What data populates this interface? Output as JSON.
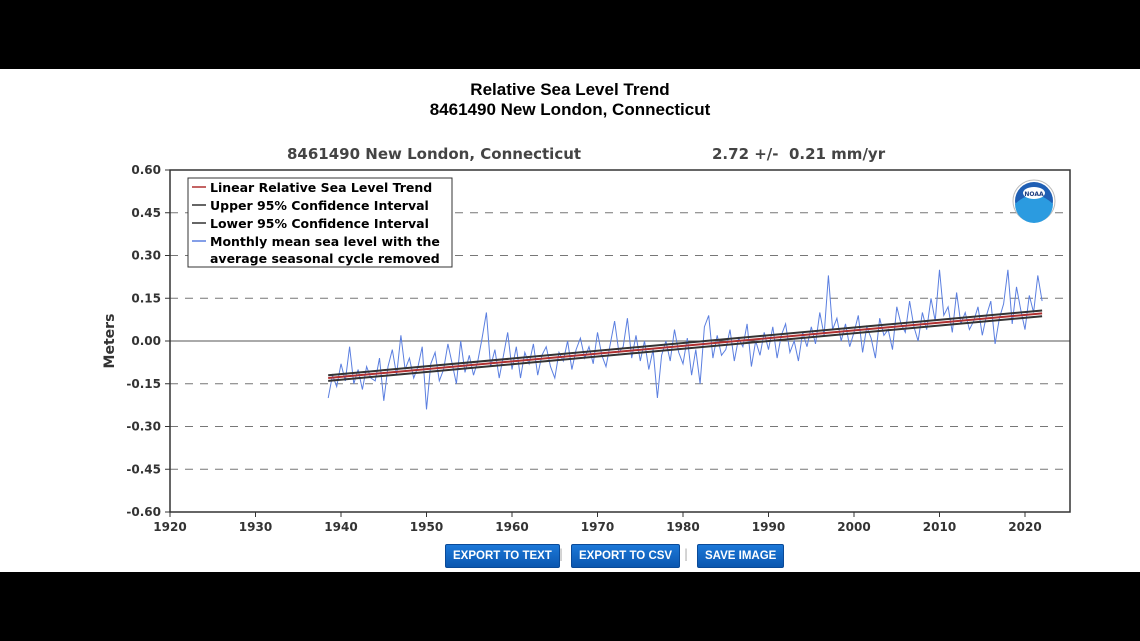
{
  "chart_data": {
    "type": "line",
    "title": "Relative Sea Level Trend",
    "subtitle": "8461490 New London, Connecticut",
    "station_label": "8461490 New London, Connecticut",
    "rate_label": "2.72 +/-  0.21 mm/yr",
    "ylabel": "Meters",
    "xlim": [
      1920,
      2025
    ],
    "ylim": [
      -0.6,
      0.6
    ],
    "xticks": [
      "1920",
      "1930",
      "1940",
      "1950",
      "1960",
      "1970",
      "1980",
      "1990",
      "2000",
      "2010",
      "2020"
    ],
    "yticks": [
      "0.60",
      "0.45",
      "0.30",
      "0.15",
      "0.00",
      "-0.15",
      "-0.30",
      "-0.45",
      "-0.60"
    ],
    "legend": [
      "Linear Relative Sea Level Trend",
      "Upper 95% Confidence Interval",
      "Lower 95% Confidence Interval",
      "Monthly mean sea level with the",
      "average seasonal cycle removed"
    ],
    "legend_position": "top-left",
    "trend": {
      "x": [
        1938.5,
        2022
      ],
      "y": [
        -0.13,
        0.097
      ]
    },
    "upper_ci": {
      "x": [
        1938.5,
        2022
      ],
      "y": [
        -0.12,
        0.107
      ]
    },
    "lower_ci": {
      "x": [
        1938.5,
        2022
      ],
      "y": [
        -0.14,
        0.087
      ]
    },
    "monthly": {
      "start": 1938.5,
      "step": 0.5,
      "values": [
        -0.2,
        -0.12,
        -0.16,
        -0.08,
        -0.14,
        -0.02,
        -0.15,
        -0.1,
        -0.17,
        -0.09,
        -0.13,
        -0.14,
        -0.06,
        -0.21,
        -0.09,
        -0.03,
        -0.12,
        0.02,
        -0.1,
        -0.06,
        -0.13,
        -0.09,
        -0.02,
        -0.24,
        -0.08,
        -0.04,
        -0.14,
        -0.1,
        -0.01,
        -0.08,
        -0.15,
        0.0,
        -0.11,
        -0.05,
        -0.12,
        -0.07,
        0.01,
        0.1,
        -0.09,
        -0.03,
        -0.13,
        -0.05,
        0.03,
        -0.1,
        -0.02,
        -0.13,
        -0.04,
        -0.08,
        -0.01,
        -0.12,
        -0.05,
        -0.02,
        -0.09,
        -0.13,
        -0.04,
        -0.07,
        0.0,
        -0.1,
        -0.03,
        0.01,
        -0.06,
        -0.02,
        -0.08,
        0.03,
        -0.05,
        -0.09,
        -0.01,
        0.07,
        -0.04,
        -0.02,
        0.08,
        -0.06,
        0.02,
        -0.07,
        0.0,
        -0.1,
        -0.03,
        -0.2,
        -0.05,
        0.0,
        -0.07,
        0.04,
        -0.04,
        -0.08,
        0.01,
        -0.12,
        -0.03,
        -0.15,
        0.05,
        0.09,
        -0.06,
        0.02,
        -0.05,
        -0.03,
        0.04,
        -0.07,
        0.01,
        -0.02,
        0.06,
        -0.09,
        0.0,
        -0.05,
        0.03,
        -0.03,
        0.05,
        -0.06,
        0.02,
        0.06,
        -0.04,
        0.0,
        -0.07,
        0.03,
        -0.02,
        0.05,
        -0.01,
        0.1,
        0.02,
        0.23,
        0.04,
        0.08,
        0.0,
        0.06,
        -0.02,
        0.03,
        0.09,
        -0.04,
        0.05,
        0.01,
        -0.06,
        0.08,
        0.02,
        0.04,
        -0.03,
        0.12,
        0.06,
        0.03,
        0.14,
        0.05,
        0.0,
        0.1,
        0.04,
        0.15,
        0.07,
        0.25,
        0.09,
        0.12,
        0.03,
        0.17,
        0.06,
        0.1,
        0.04,
        0.07,
        0.12,
        0.02,
        0.09,
        0.14,
        -0.01,
        0.08,
        0.13,
        0.25,
        0.06,
        0.19,
        0.11,
        0.04,
        0.16,
        0.1,
        0.23,
        0.14
      ]
    },
    "colors": {
      "trend": "#b03030",
      "ci": "#333333",
      "monthly": "#5b7fe0"
    }
  },
  "logo_text": "NOAA",
  "buttons": {
    "export_text": "EXPORT TO TEXT",
    "export_csv": "EXPORT TO CSV",
    "save_image": "SAVE IMAGE",
    "separator": "|"
  }
}
